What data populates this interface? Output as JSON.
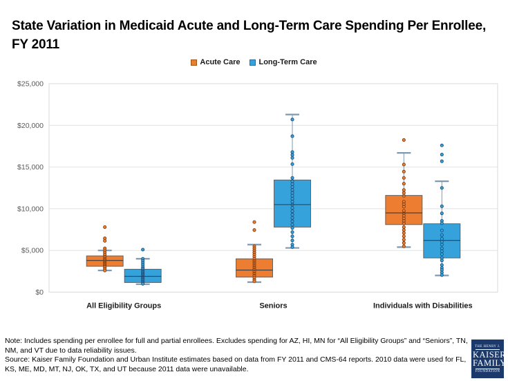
{
  "title": "State Variation in Medicaid Acute and Long-Term Care Spending Per Enrollee, FY 2011",
  "legend": [
    {
      "label": "Acute Care",
      "color": "#ED7D31",
      "border": "#9C5716"
    },
    {
      "label": "Long-Term Care",
      "color": "#36A2DB",
      "border": "#1F6FA8"
    }
  ],
  "notes": {
    "note": "Note: Includes spending per enrollee for full and partial enrollees. Excludes spending for AZ, HI, MN for “All Eligibility Groups” and “Seniors”, TN, NM, and VT due to data reliability issues.",
    "source": "Source: Kaiser Family Foundation and Urban Institute estimates based on data from FY 2011 and CMS-64 reports. 2010 data were used for FL, KS, ME, MD, MT, NJ, OK, TX, and UT because 2011 data were unavailable."
  },
  "logo": {
    "line1": "THE HENRY J.",
    "line2": "KAISER",
    "line3": "FAMILY",
    "line4": "FOUNDATION",
    "bg": "#1B3A6B"
  },
  "chart_data": {
    "type": "box",
    "title": "State Variation in Medicaid Acute and Long-Term Care Spending Per Enrollee, FY 2011",
    "categories": [
      "All Eligibility Groups",
      "Seniors",
      "Individuals with Disabilities"
    ],
    "y_axis": {
      "min": 0,
      "max": 25000,
      "tick_step": 5000,
      "tick_labels": [
        "$0",
        "$5,000",
        "$10,000",
        "$15,000",
        "$20,000",
        "$25,000"
      ]
    },
    "grid": true,
    "legend_position": "top",
    "colors": {
      "gridline": "#E2E2E2",
      "plot_border": "#D9D9D9",
      "whisker": "#7E99B0",
      "box_border": "#595959",
      "median": "#3a3a3a",
      "tick_label": "#595959",
      "category_label": "#1a1a1a"
    },
    "series": [
      {
        "name": "Acute Care",
        "color": "#ED7D31",
        "point_stroke": "#843C0C",
        "boxes": [
          {
            "low": 2600,
            "q1": 3100,
            "median": 3800,
            "q3": 4350,
            "high": 5000,
            "points": [
              7800,
              6450,
              6150,
              5250,
              5000,
              4750,
              4500,
              4250,
              4000,
              3800,
              3600,
              3400,
              3200,
              3000,
              2800,
              2600
            ]
          },
          {
            "low": 1200,
            "q1": 1800,
            "median": 2650,
            "q3": 4000,
            "high": 5700,
            "points": [
              8400,
              7450,
              5500,
              5250,
              5000,
              4750,
              4500,
              4250,
              4000,
              3750,
              3500,
              3250,
              3000,
              2750,
              2500,
              2250,
              2000,
              1750,
              1500,
              1300
            ]
          },
          {
            "low": 5400,
            "q1": 8100,
            "median": 9500,
            "q3": 11600,
            "high": 16700,
            "points": [
              18250,
              15300,
              14450,
              13700,
              13000,
              12250,
              11900,
              11550,
              10850,
              10550,
              10250,
              9750,
              9450,
              9150,
              8850,
              8550,
              8250,
              7800,
              7450,
              7100,
              6700,
              6300,
              5900,
              5500
            ]
          }
        ]
      },
      {
        "name": "Long-Term Care",
        "color": "#36A2DB",
        "point_stroke": "#1F4E79",
        "boxes": [
          {
            "low": 950,
            "q1": 1150,
            "median": 1900,
            "q3": 2750,
            "high": 4000,
            "points": [
              5100,
              4000,
              3750,
              3500,
              3250,
              3000,
              2800,
              2600,
              2400,
              2200,
              2000,
              1800,
              1600,
              1400,
              1200,
              1000
            ]
          },
          {
            "low": 5300,
            "q1": 7800,
            "median": 10500,
            "q3": 13450,
            "high": 21300,
            "points": [
              20700,
              18700,
              16800,
              16450,
              16100,
              15350,
              13700,
              13300,
              12950,
              12600,
              12250,
              11900,
              11550,
              11200,
              10850,
              10500,
              10100,
              9700,
              9300,
              8900,
              8500,
              8100,
              7700,
              7200,
              6700,
              6200,
              5700,
              5400
            ]
          },
          {
            "low": 2000,
            "q1": 4100,
            "median": 6200,
            "q3": 8200,
            "high": 13300,
            "points": [
              17600,
              16500,
              15700,
              12500,
              10300,
              9450,
              8550,
              8250,
              7400,
              6850,
              6400,
              6050,
              5700,
              5250,
              4900,
              4550,
              4100,
              3800,
              3250,
              2900,
              2650,
              2350,
              2050
            ]
          }
        ]
      }
    ]
  }
}
